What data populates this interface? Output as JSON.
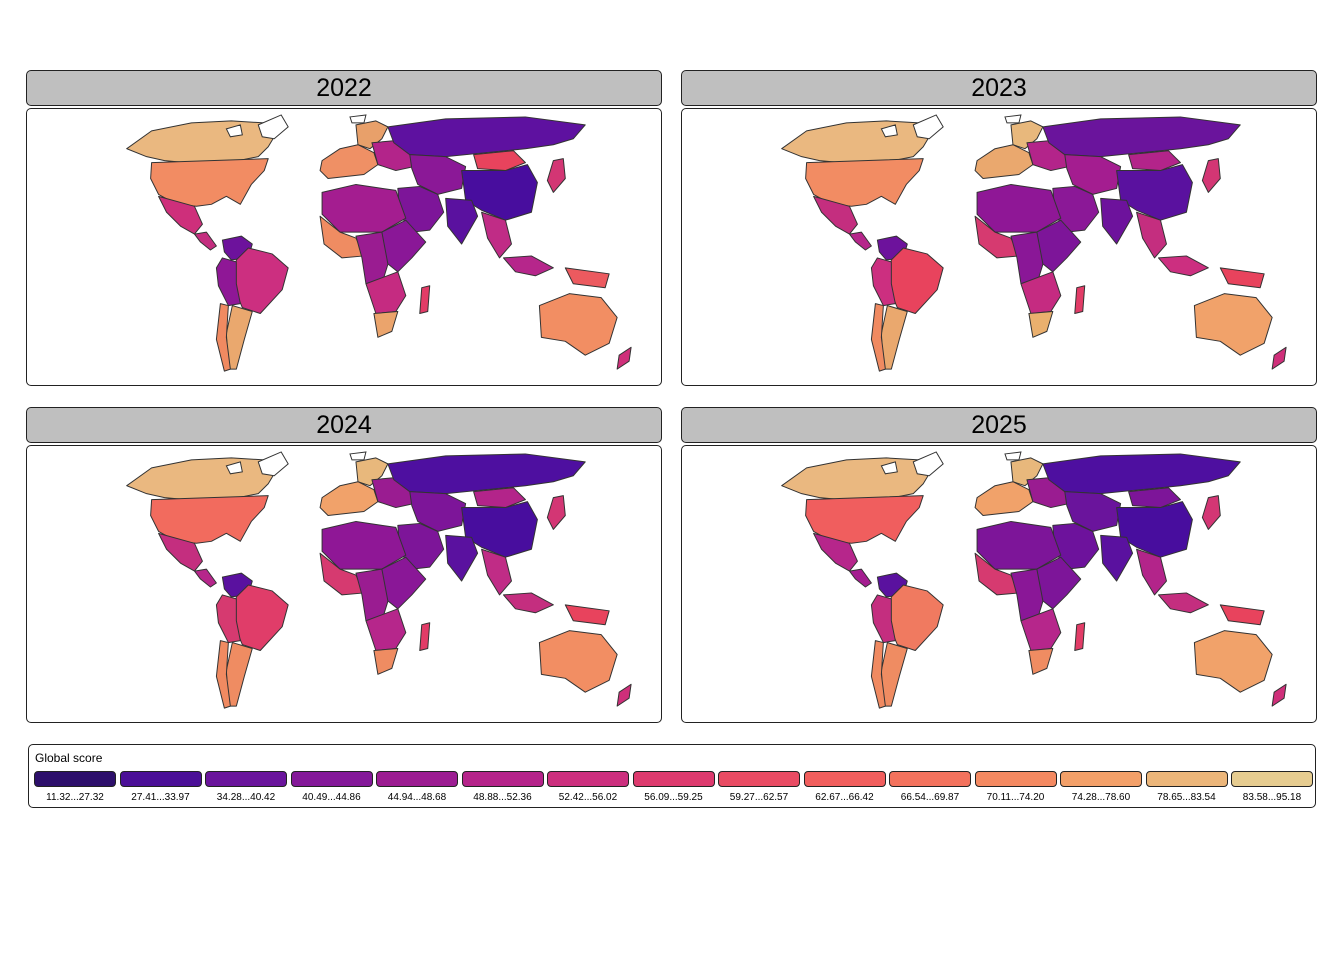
{
  "panels": [
    {
      "year": "2022",
      "palette": {
        "na": "#eab880",
        "us": "#f28c63",
        "mx": "#ce2f7b",
        "ca_am": "#c42e7f",
        "sa_n": "#6d129c",
        "brazil": "#cc2f80",
        "sa_w": "#8f1796",
        "arg": "#eaa86e",
        "chile": "#f08a61",
        "eu_w": "#ef9065",
        "eu_n": "#e8a06a",
        "eu_e": "#b3248a",
        "russia": "#5e11a0",
        "c_asia": "#8b1897",
        "china": "#480d9e",
        "mongolia": "#e8435d",
        "india": "#5a119f",
        "mideast": "#7d1599",
        "seasia": "#c02c86",
        "japan": "#d33674",
        "indo": "#b6268b",
        "png": "#ec5a5f",
        "aus": "#f28e63",
        "nz": "#cf2f7a",
        "af_n": "#a41d90",
        "af_w": "#ef8c62",
        "af_c": "#9a1c91",
        "af_e": "#8a1797",
        "af_s": "#c52b81",
        "zaf": "#eba46c",
        "mada": "#e23c67"
      }
    },
    {
      "year": "2023",
      "palette": {
        "na": "#eab880",
        "us": "#f28c63",
        "mx": "#c42e7f",
        "ca_am": "#b6268b",
        "sa_n": "#6d129c",
        "brazil": "#e8435d",
        "sa_w": "#cc2f80",
        "arg": "#eaa86e",
        "chile": "#f08a61",
        "eu_w": "#eaa86e",
        "eu_n": "#e8b87c",
        "eu_e": "#b3248a",
        "russia": "#6a149c",
        "c_asia": "#a41d90",
        "china": "#5a119f",
        "mongolia": "#b3248a",
        "india": "#6d129c",
        "mideast": "#8b1897",
        "seasia": "#c42e7f",
        "japan": "#d33674",
        "indo": "#cc2f80",
        "png": "#e8435d",
        "aus": "#f1a26a",
        "nz": "#cf2f7a",
        "af_n": "#8f1796",
        "af_w": "#d63a70",
        "af_c": "#8a1797",
        "af_e": "#7d1599",
        "af_s": "#c52b81",
        "zaf": "#eab06e",
        "mada": "#e23c67"
      }
    },
    {
      "year": "2024",
      "palette": {
        "na": "#eab880",
        "us": "#f26b5e",
        "mx": "#c42e7f",
        "ca_am": "#b6268b",
        "sa_n": "#5a119f",
        "brazil": "#e03d69",
        "sa_w": "#d63a70",
        "arg": "#ef8c62",
        "chile": "#f08a61",
        "eu_w": "#f1a26a",
        "eu_n": "#e8b87c",
        "eu_e": "#9a1c91",
        "russia": "#4e0fa0",
        "c_asia": "#7d1599",
        "china": "#480d9e",
        "mongolia": "#b3248a",
        "india": "#5a119f",
        "mideast": "#7d1599",
        "seasia": "#c02c86",
        "japan": "#d33674",
        "indo": "#c42e7f",
        "png": "#e8435d",
        "aus": "#f28e63",
        "nz": "#cf2f7a",
        "af_n": "#8f1796",
        "af_w": "#d63a70",
        "af_c": "#9a1c91",
        "af_e": "#8a1797",
        "af_s": "#b6268b",
        "zaf": "#ef8c62",
        "mada": "#e23c67"
      }
    },
    {
      "year": "2025",
      "palette": {
        "na": "#eab880",
        "us": "#f05e5e",
        "mx": "#b6268b",
        "ca_am": "#a41d90",
        "sa_n": "#5a119f",
        "brazil": "#f07a60",
        "sa_w": "#c42e7f",
        "arg": "#ef8c62",
        "chile": "#f08a61",
        "eu_w": "#f1a26a",
        "eu_n": "#e8b87c",
        "eu_e": "#9a1c91",
        "russia": "#4e0fa0",
        "c_asia": "#6a149c",
        "china": "#480d9e",
        "mongolia": "#7d1599",
        "india": "#5a119f",
        "mideast": "#6d129c",
        "seasia": "#b3248a",
        "japan": "#d33674",
        "indo": "#c42e7f",
        "png": "#e8435d",
        "aus": "#f1a26a",
        "nz": "#cf2f7a",
        "af_n": "#7d1599",
        "af_w": "#d63a70",
        "af_c": "#8a1797",
        "af_e": "#7d1599",
        "af_s": "#b6268b",
        "zaf": "#ef8c62",
        "mada": "#e23c67"
      }
    }
  ],
  "legend": {
    "title": "Global score",
    "bins": [
      {
        "label": "11.32...27.32",
        "color": "#2d0f6b"
      },
      {
        "label": "27.41...33.97",
        "color": "#4b0f97"
      },
      {
        "label": "34.28...40.42",
        "color": "#6a149c"
      },
      {
        "label": "40.49...44.86",
        "color": "#841899"
      },
      {
        "label": "44.94...48.68",
        "color": "#9c1c92"
      },
      {
        "label": "48.88...52.36",
        "color": "#b5238a"
      },
      {
        "label": "52.42...56.02",
        "color": "#cc2f7e"
      },
      {
        "label": "56.09...59.25",
        "color": "#dd3a6e"
      },
      {
        "label": "59.27...62.57",
        "color": "#e94b63"
      },
      {
        "label": "62.67...66.42",
        "color": "#f15e5d"
      },
      {
        "label": "66.54...69.87",
        "color": "#f3725d"
      },
      {
        "label": "70.11...74.20",
        "color": "#f48961"
      },
      {
        "label": "74.28...78.60",
        "color": "#f3a069"
      },
      {
        "label": "78.65...83.54",
        "color": "#ecb67a"
      },
      {
        "label": "83.58...95.18",
        "color": "#e6cc90"
      }
    ]
  }
}
